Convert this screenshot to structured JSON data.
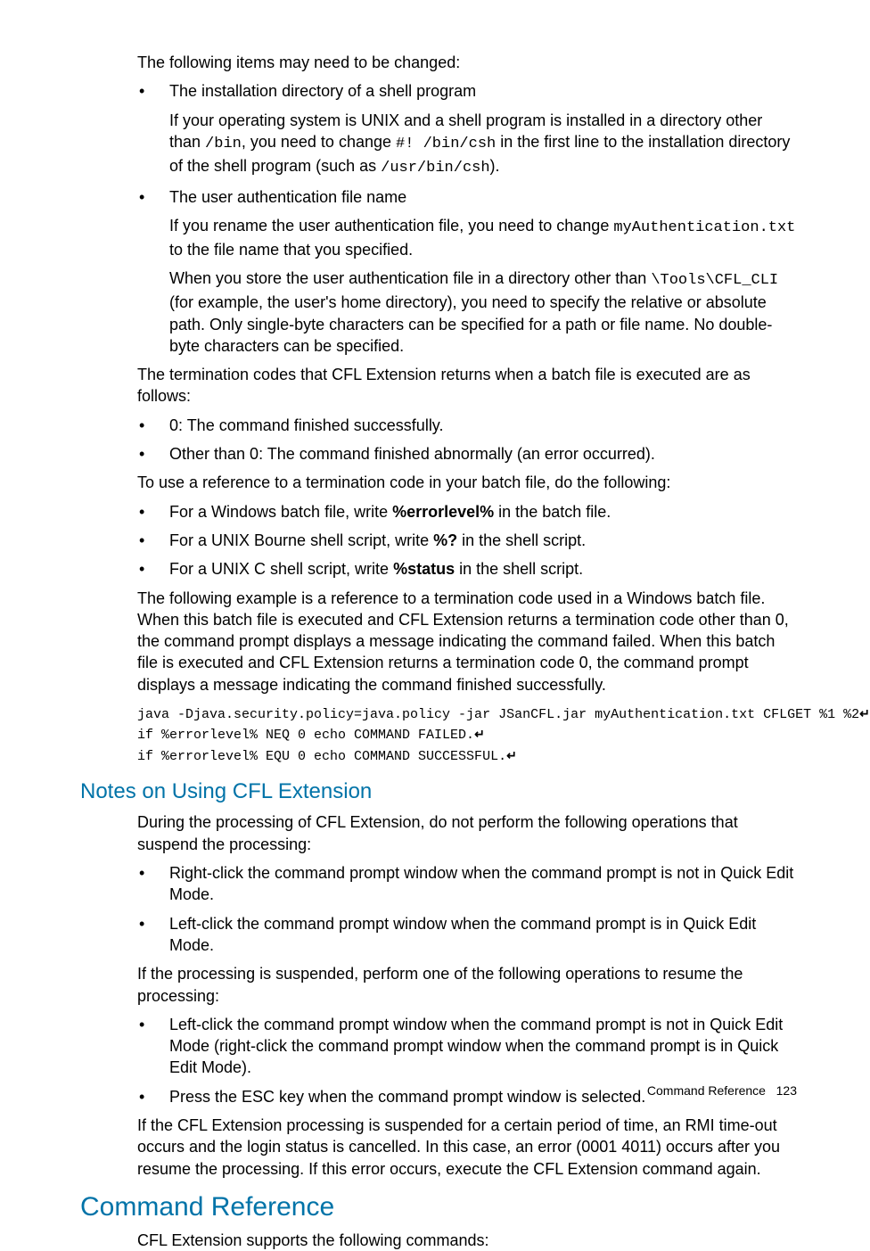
{
  "intro": "The following items may need to be changed:",
  "item1_title": "The installation directory of a shell program",
  "item1_p1a": "If your operating system is UNIX and a shell program is installed in a directory other than ",
  "item1_code1": "/bin",
  "item1_p1b": ", you need to change ",
  "item1_code2": "#! /bin/csh",
  "item1_p1c": " in the first line to the installation directory of the shell program (such as ",
  "item1_code3": "/usr/bin/csh",
  "item1_p1d": ").",
  "item2_title": "The user authentication file name",
  "item2_p1a": "If you rename the user authentication file, you need to change ",
  "item2_code1": "myAuthentication.txt",
  "item2_p1b": " to the file name that you specified.",
  "item2_p2a": "When you store the user authentication file in a directory other than ",
  "item2_code2": "\\Tools\\CFL_CLI",
  "item2_p2b": " (for example, the user's home directory), you need to specify the relative or absolute path. Only single-byte characters can be specified for a path or file name. No double-byte characters can be specified.",
  "term_intro": "The termination codes that CFL Extension returns when a batch file is executed are as follows:",
  "term1": "0: The command finished successfully.",
  "term2": "Other than 0: The command finished abnormally (an error occurred).",
  "ref_intro": "To use a reference to a termination code in your batch file, do the following:",
  "ref1a": "For a Windows batch file, write ",
  "ref1b": "%errorlevel%",
  "ref1c": " in the batch file.",
  "ref2a": "For a UNIX Bourne shell script, write ",
  "ref2b": "%?",
  "ref2c": " in the shell script.",
  "ref3a": "For a UNIX C shell script, write ",
  "ref3b": "%status",
  "ref3c": " in the shell script.",
  "example_intro": "The following example is a reference to a termination code used in a Windows batch file. When this batch file is executed and CFL Extension returns a termination code other than 0, the command prompt displays a message indicating the command failed. When this batch file is executed and CFL Extension returns a termination code 0, the command prompt displays a message indicating the command finished successfully.",
  "code_line1": "java -Djava.security.policy=java.policy -jar JSanCFL.jar myAuthentication.txt CFLGET %1 %2",
  "code_line2": "if %errorlevel% NEQ 0 echo COMMAND FAILED.",
  "code_line3": "if %errorlevel% EQU 0 echo COMMAND SUCCESSFUL.",
  "h2_notes": "Notes on Using CFL Extension",
  "notes_intro": "During the processing of CFL Extension, do not perform the following operations that suspend the processing:",
  "notes_li1": "Right-click the command prompt window when the command prompt is not in Quick Edit Mode.",
  "notes_li2": "Left-click the command prompt window when the command prompt is in Quick Edit Mode.",
  "notes_mid": "If the processing is suspended, perform one of the following operations to resume the processing:",
  "notes_li3": "Left-click the command prompt window when the command prompt is not in Quick Edit Mode (right-click the command prompt window when the command prompt is in Quick Edit Mode).",
  "notes_li4": "Press the ESC key when the command prompt window is selected.",
  "notes_end": "If the CFL Extension processing is suspended for a certain period of time, an RMI time-out occurs and the login status is cancelled. In this case, an error (0001 4011) occurs after you resume the processing. If this error occurs, execute the CFL Extension command again.",
  "h1_cmdref": "Command Reference",
  "cmdref_intro": "CFL Extension supports the following commands:",
  "footer_label": "Command Reference",
  "footer_page": "123",
  "return_glyph": "↵"
}
